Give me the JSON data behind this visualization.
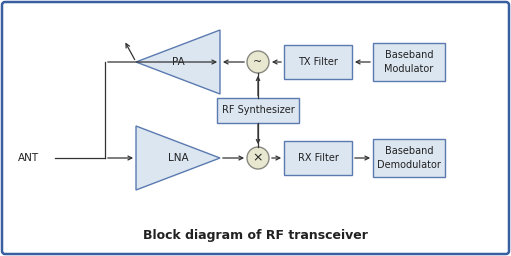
{
  "title": "Block diagram of RF transceiver",
  "bg": "#ffffff",
  "border_color": "#3a5fa0",
  "block_fill": "#dce6f1",
  "block_edge": "#5a7ab0",
  "tri_fill": "#dce6f1",
  "tri_edge": "#5a7ab0",
  "circ_fill": "#e8e8d0",
  "circ_edge": "#888880",
  "line_color": "#333333",
  "text_color": "#222222",
  "ant_label": "ANT",
  "pa_label": "PA",
  "lna_label": "LNA",
  "tx_filter_label": "TX Filter",
  "rx_filter_label": "RX Filter",
  "rf_synth_label": "RF Synthesizer",
  "bb_mod_label": "Baseband\nModulator",
  "bb_demod_label": "Baseband\nDemodulator",
  "title_label": "Block diagram of RF transceiver"
}
